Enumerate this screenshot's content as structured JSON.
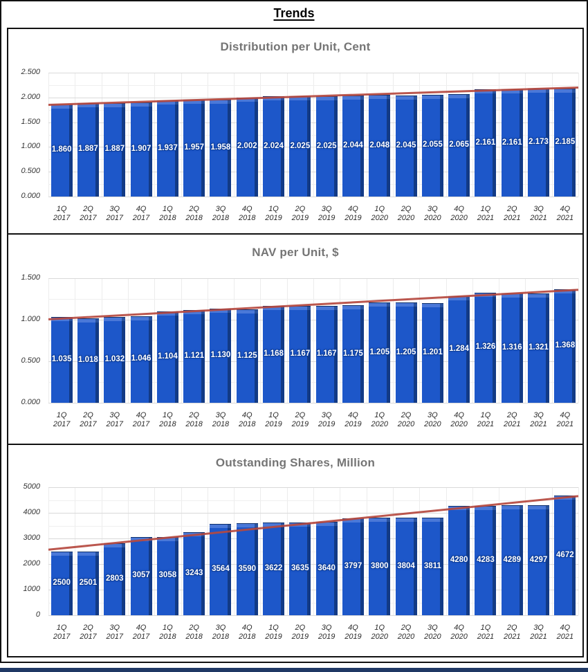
{
  "page_title": "Trends",
  "accent_colors": {
    "bar_blue": "#1d57c9",
    "bar_side_blue": "#123a85",
    "trend_red": "#b5493f",
    "title_gray": "#757575",
    "footer_navy": "#1f3864"
  },
  "chart_data": [
    {
      "type": "bar",
      "title": "Distribution per Unit, Cent",
      "categories": [
        "1Q 2017",
        "2Q 2017",
        "3Q 2017",
        "4Q 2017",
        "1Q 2018",
        "2Q 2018",
        "3Q 2018",
        "4Q 2018",
        "1Q 2019",
        "2Q 2019",
        "3Q 2019",
        "4Q 2019",
        "1Q 2020",
        "2Q 2020",
        "3Q 2020",
        "4Q 2020",
        "1Q 2021",
        "2Q 2021",
        "3Q 2021",
        "4Q 2021"
      ],
      "values": [
        1.86,
        1.887,
        1.887,
        1.907,
        1.937,
        1.957,
        1.958,
        2.002,
        2.024,
        2.025,
        2.025,
        2.044,
        2.048,
        2.045,
        2.055,
        2.065,
        2.161,
        2.161,
        2.173,
        2.185
      ],
      "value_labels": [
        "1.860",
        "1.887",
        "1.887",
        "1.907",
        "1.937",
        "1.957",
        "1.958",
        "2.002",
        "2.024",
        "2.025",
        "2.025",
        "2.044",
        "2.048",
        "2.045",
        "2.055",
        "2.065",
        "2.161",
        "2.161",
        "2.173",
        "2.185"
      ],
      "ylim": [
        0,
        2.5
      ],
      "ytick_values": [
        0,
        0.5,
        1.0,
        1.5,
        2.0,
        2.5
      ],
      "ytick_labels": [
        "0.000",
        "0.500",
        "1.000",
        "1.500",
        "2.000",
        "2.500"
      ],
      "ytick_minor": [
        0.25,
        0.75,
        1.25,
        1.75,
        2.25
      ],
      "grid": true,
      "legend": "none",
      "trendline": {
        "start": 1.85,
        "end": 2.2,
        "color": "#b5493f"
      }
    },
    {
      "type": "bar",
      "title": "NAV per Unit, $",
      "categories": [
        "1Q 2017",
        "2Q 2017",
        "3Q 2017",
        "4Q 2017",
        "1Q 2018",
        "2Q 2018",
        "3Q 2018",
        "4Q 2018",
        "1Q 2019",
        "2Q 2019",
        "3Q 2019",
        "4Q 2019",
        "1Q 2020",
        "2Q 2020",
        "3Q 2020",
        "4Q 2020",
        "1Q 2021",
        "2Q 2021",
        "3Q 2021",
        "4Q 2021"
      ],
      "values": [
        1.035,
        1.018,
        1.032,
        1.046,
        1.104,
        1.121,
        1.13,
        1.125,
        1.168,
        1.167,
        1.167,
        1.175,
        1.205,
        1.205,
        1.201,
        1.284,
        1.326,
        1.316,
        1.321,
        1.368
      ],
      "value_labels": [
        "1.035",
        "1.018",
        "1.032",
        "1.046",
        "1.104",
        "1.121",
        "1.130",
        "1.125",
        "1.168",
        "1.167",
        "1.167",
        "1.175",
        "1.205",
        "1.205",
        "1.201",
        "1.284",
        "1.326",
        "1.316",
        "1.321",
        "1.368"
      ],
      "ylim": [
        0,
        1.5
      ],
      "ytick_values": [
        0,
        0.5,
        1.0,
        1.5
      ],
      "ytick_labels": [
        "0.000",
        "0.500",
        "1.000",
        "1.500"
      ],
      "ytick_minor": [
        0.25,
        0.75,
        1.25
      ],
      "grid": true,
      "legend": "none",
      "trendline": {
        "start": 1.005,
        "end": 1.36,
        "color": "#b5493f"
      }
    },
    {
      "type": "bar",
      "title": "Outstanding Shares, Million",
      "categories": [
        "1Q 2017",
        "2Q 2017",
        "3Q 2017",
        "4Q 2017",
        "1Q 2018",
        "2Q 2018",
        "3Q 2018",
        "4Q 2018",
        "1Q 2019",
        "2Q 2019",
        "3Q 2019",
        "4Q 2019",
        "1Q 2020",
        "2Q 2020",
        "3Q 2020",
        "4Q 2020",
        "1Q 2021",
        "2Q 2021",
        "3Q 2021",
        "4Q 2021"
      ],
      "values": [
        2500,
        2501,
        2803,
        3057,
        3058,
        3243,
        3564,
        3590,
        3622,
        3635,
        3640,
        3797,
        3800,
        3804,
        3811,
        4280,
        4283,
        4289,
        4297,
        4672
      ],
      "value_labels": [
        "2500",
        "2501",
        "2803",
        "3057",
        "3058",
        "3243",
        "3564",
        "3590",
        "3622",
        "3635",
        "3640",
        "3797",
        "3800",
        "3804",
        "3811",
        "4280",
        "4283",
        "4289",
        "4297",
        "4672"
      ],
      "ylim": [
        0,
        5000
      ],
      "ytick_values": [
        0,
        1000,
        2000,
        3000,
        4000,
        5000
      ],
      "ytick_labels": [
        "0",
        "1000",
        "2000",
        "3000",
        "4000",
        "5000"
      ],
      "ytick_minor": [
        500,
        1500,
        2500,
        3500,
        4500
      ],
      "grid": true,
      "legend": "none",
      "trendline": {
        "start": 2560,
        "end": 4650,
        "color": "#b5493f"
      }
    }
  ]
}
